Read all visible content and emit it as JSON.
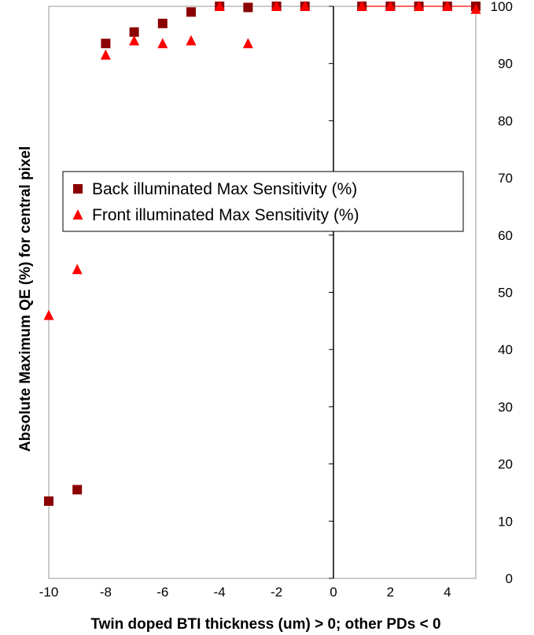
{
  "chart_data": {
    "type": "scatter",
    "title": "",
    "xlabel": "Twin doped BTI thickness (um) > 0; other PDs < 0",
    "ylabel": "Absolute Maximum QE (%) for central pixel",
    "xlim": [
      -10,
      5
    ],
    "ylim": [
      0,
      100
    ],
    "x_ticks": [
      "-10",
      "-8",
      "-6",
      "-4",
      "-2",
      "0",
      "2",
      "4"
    ],
    "y_ticks": [
      "0",
      "10",
      "20",
      "30",
      "40",
      "50",
      "60",
      "70",
      "80",
      "90",
      "100"
    ],
    "y_axis_side": "right",
    "grid": false,
    "legend_position": "middle-left",
    "series": [
      {
        "name": "Back illuminated  Max Sensitivity (%)",
        "marker": "square",
        "color": "#8b0000",
        "x": [
          -10,
          -9,
          -8,
          -7,
          -6,
          -5,
          -4,
          -3,
          -2,
          -1,
          1,
          2,
          3,
          4,
          5
        ],
        "y": [
          13.5,
          15.5,
          93.5,
          95.5,
          97,
          99,
          100,
          99.8,
          100,
          100,
          100,
          100,
          100,
          100,
          100
        ]
      },
      {
        "name": "Front illuminated  Max Sensitivity (%)",
        "marker": "triangle",
        "color": "#ff0000",
        "x": [
          -10,
          -9,
          -8,
          -7,
          -6,
          -5,
          -4,
          -3,
          -2,
          -1,
          1,
          2,
          3,
          4,
          5
        ],
        "y": [
          46,
          54,
          91.5,
          94,
          93.5,
          94,
          100,
          93.5,
          100,
          100,
          100,
          100,
          100,
          100,
          99.5
        ]
      }
    ],
    "line_segment": {
      "color": "#ff0000",
      "x": [
        1,
        5
      ],
      "y": [
        100,
        100
      ]
    }
  }
}
